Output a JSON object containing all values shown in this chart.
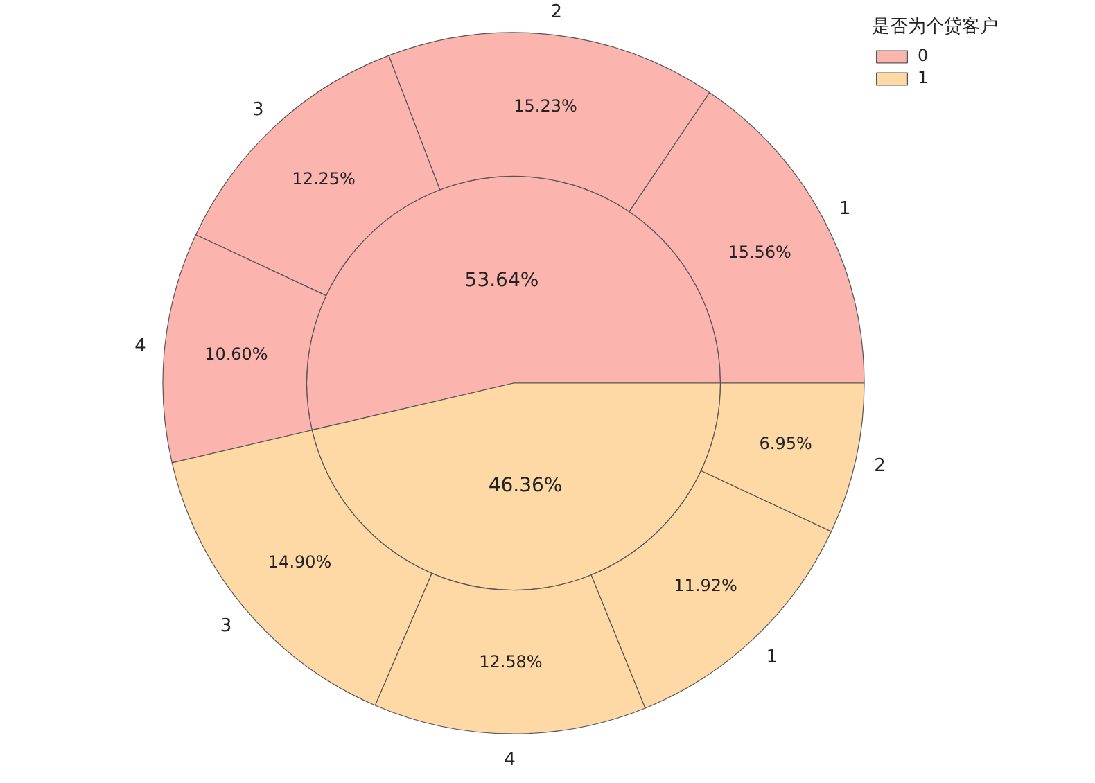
{
  "chart_data": [
    {
      "type": "pie",
      "legend": "top right",
      "legend_title": "是否为个贷客户",
      "categories": [
        "0",
        "1"
      ],
      "values": [
        53.64,
        46.36
      ],
      "colors": [
        "#fbb4ae",
        "#fed9a6"
      ],
      "value_labels": [
        "53.64%",
        "46.36%"
      ]
    },
    {
      "type": "donut",
      "categories": [
        "1",
        "2",
        "3",
        "4",
        "3",
        "4",
        "1",
        "2"
      ],
      "values": [
        15.56,
        15.23,
        12.25,
        10.6,
        14.9,
        12.58,
        11.92,
        6.95
      ],
      "colors": [
        "#fbb4ae",
        "#fbb4ae",
        "#fbb4ae",
        "#fbb4ae",
        "#fed9a6",
        "#fed9a6",
        "#fed9a6",
        "#fed9a6"
      ],
      "value_labels": [
        "15.56%",
        "15.23%",
        "12.25%",
        "10.60%",
        "14.90%",
        "12.58%",
        "11.92%",
        "6.95%"
      ]
    }
  ]
}
